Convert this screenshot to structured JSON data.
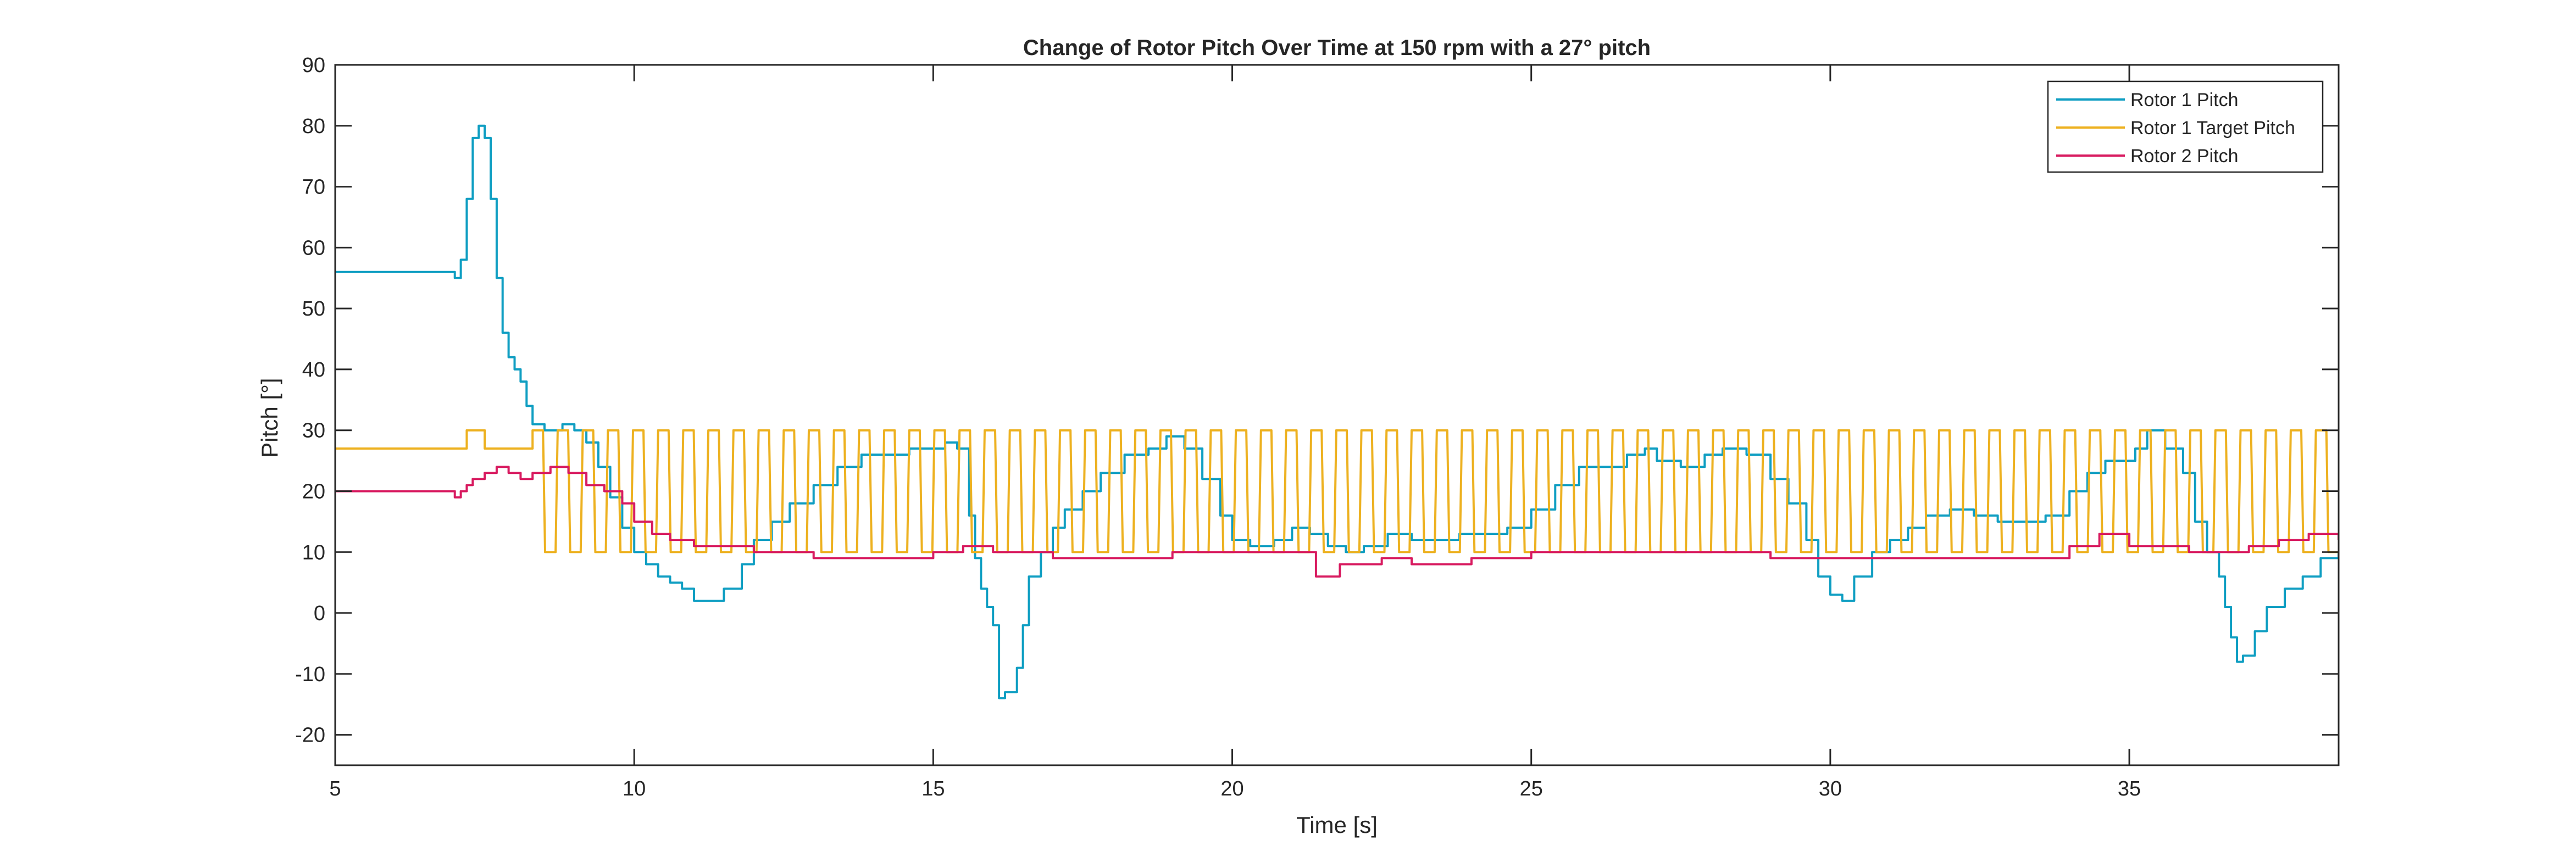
{
  "chart_data": {
    "type": "line",
    "title": "Change of Rotor Pitch Over Time at 150 rpm with a 27° pitch",
    "xlabel": "Time [s]",
    "ylabel": "Pitch [°]",
    "xlim": [
      5,
      38.5
    ],
    "ylim": [
      -25,
      90
    ],
    "xticks": [
      5,
      10,
      15,
      20,
      25,
      30,
      35
    ],
    "yticks": [
      -20,
      -10,
      0,
      10,
      20,
      30,
      40,
      50,
      60,
      70,
      80,
      90
    ],
    "grid": false,
    "legend_position": "top-right",
    "series": [
      {
        "name": "Rotor 1 Pitch",
        "color": "#0f9ec2",
        "step": true,
        "points": [
          [
            5,
            56
          ],
          [
            6.9,
            56
          ],
          [
            7.0,
            55
          ],
          [
            7.1,
            58
          ],
          [
            7.2,
            68
          ],
          [
            7.3,
            78
          ],
          [
            7.4,
            80
          ],
          [
            7.5,
            78
          ],
          [
            7.6,
            68
          ],
          [
            7.7,
            55
          ],
          [
            7.8,
            46
          ],
          [
            7.9,
            42
          ],
          [
            8.0,
            40
          ],
          [
            8.1,
            38
          ],
          [
            8.2,
            34
          ],
          [
            8.3,
            31
          ],
          [
            8.5,
            30
          ],
          [
            8.8,
            31
          ],
          [
            9.0,
            30
          ],
          [
            9.2,
            28
          ],
          [
            9.4,
            24
          ],
          [
            9.6,
            19
          ],
          [
            9.8,
            14
          ],
          [
            10.0,
            10
          ],
          [
            10.2,
            8
          ],
          [
            10.4,
            6
          ],
          [
            10.6,
            5
          ],
          [
            10.8,
            4
          ],
          [
            11.0,
            2
          ],
          [
            11.3,
            2
          ],
          [
            11.5,
            4
          ],
          [
            11.8,
            8
          ],
          [
            12.0,
            12
          ],
          [
            12.3,
            15
          ],
          [
            12.6,
            18
          ],
          [
            13.0,
            21
          ],
          [
            13.4,
            24
          ],
          [
            13.8,
            26
          ],
          [
            14.2,
            26
          ],
          [
            14.6,
            27
          ],
          [
            15.0,
            27
          ],
          [
            15.2,
            28
          ],
          [
            15.4,
            27
          ],
          [
            15.6,
            16
          ],
          [
            15.7,
            9
          ],
          [
            15.8,
            4
          ],
          [
            15.9,
            1
          ],
          [
            16.0,
            -2
          ],
          [
            16.1,
            -14
          ],
          [
            16.2,
            -13
          ],
          [
            16.4,
            -9
          ],
          [
            16.5,
            -2
          ],
          [
            16.6,
            6
          ],
          [
            16.8,
            10
          ],
          [
            17.0,
            14
          ],
          [
            17.2,
            17
          ],
          [
            17.5,
            20
          ],
          [
            17.8,
            23
          ],
          [
            18.2,
            26
          ],
          [
            18.6,
            27
          ],
          [
            18.9,
            29
          ],
          [
            19.2,
            27
          ],
          [
            19.5,
            22
          ],
          [
            19.8,
            16
          ],
          [
            20.0,
            12
          ],
          [
            20.3,
            11
          ],
          [
            20.7,
            12
          ],
          [
            21.0,
            14
          ],
          [
            21.3,
            13
          ],
          [
            21.6,
            11
          ],
          [
            21.9,
            10
          ],
          [
            22.2,
            11
          ],
          [
            22.6,
            13
          ],
          [
            23.0,
            12
          ],
          [
            23.4,
            12
          ],
          [
            23.8,
            13
          ],
          [
            24.2,
            13
          ],
          [
            24.6,
            14
          ],
          [
            25.0,
            17
          ],
          [
            25.4,
            21
          ],
          [
            25.8,
            24
          ],
          [
            26.2,
            24
          ],
          [
            26.6,
            26
          ],
          [
            26.9,
            27
          ],
          [
            27.1,
            25
          ],
          [
            27.5,
            24
          ],
          [
            27.9,
            26
          ],
          [
            28.2,
            27
          ],
          [
            28.6,
            26
          ],
          [
            29.0,
            22
          ],
          [
            29.3,
            18
          ],
          [
            29.6,
            12
          ],
          [
            29.8,
            6
          ],
          [
            30.0,
            3
          ],
          [
            30.2,
            2
          ],
          [
            30.4,
            6
          ],
          [
            30.7,
            10
          ],
          [
            31.0,
            12
          ],
          [
            31.3,
            14
          ],
          [
            31.6,
            16
          ],
          [
            32.0,
            17
          ],
          [
            32.4,
            16
          ],
          [
            32.8,
            15
          ],
          [
            33.2,
            15
          ],
          [
            33.6,
            16
          ],
          [
            34.0,
            20
          ],
          [
            34.3,
            23
          ],
          [
            34.6,
            25
          ],
          [
            34.9,
            25
          ],
          [
            35.1,
            27
          ],
          [
            35.3,
            30
          ],
          [
            35.6,
            27
          ],
          [
            35.9,
            23
          ],
          [
            36.1,
            15
          ],
          [
            36.3,
            10
          ],
          [
            36.5,
            6
          ],
          [
            36.6,
            1
          ],
          [
            36.7,
            -4
          ],
          [
            36.8,
            -8
          ],
          [
            36.9,
            -7
          ],
          [
            37.1,
            -3
          ],
          [
            37.3,
            1
          ],
          [
            37.6,
            4
          ],
          [
            37.9,
            6
          ],
          [
            38.2,
            9
          ],
          [
            38.5,
            10
          ]
        ]
      },
      {
        "name": "Rotor 1 Target Pitch",
        "color": "#edb120",
        "square_wave": {
          "period": 0.42,
          "high": 30,
          "low": 10,
          "start": 8.3
        },
        "points": [
          [
            5,
            27
          ],
          [
            7.2,
            27
          ],
          [
            7.2,
            30
          ],
          [
            7.5,
            30
          ],
          [
            7.5,
            27
          ],
          [
            8.3,
            27
          ]
        ]
      },
      {
        "name": "Rotor 2 Pitch",
        "color": "#d81b60",
        "step": true,
        "points": [
          [
            5,
            20
          ],
          [
            6.9,
            20
          ],
          [
            7.0,
            19
          ],
          [
            7.1,
            20
          ],
          [
            7.2,
            21
          ],
          [
            7.3,
            22
          ],
          [
            7.5,
            23
          ],
          [
            7.7,
            24
          ],
          [
            7.9,
            23
          ],
          [
            8.1,
            22
          ],
          [
            8.3,
            23
          ],
          [
            8.6,
            24
          ],
          [
            8.9,
            23
          ],
          [
            9.2,
            21
          ],
          [
            9.5,
            20
          ],
          [
            9.8,
            18
          ],
          [
            10.0,
            15
          ],
          [
            10.3,
            13
          ],
          [
            10.6,
            12
          ],
          [
            11.0,
            11
          ],
          [
            11.5,
            11
          ],
          [
            12.0,
            10
          ],
          [
            12.6,
            10
          ],
          [
            13.0,
            9
          ],
          [
            14.0,
            9
          ],
          [
            15.0,
            10
          ],
          [
            15.5,
            11
          ],
          [
            16.0,
            10
          ],
          [
            17.0,
            9
          ],
          [
            18.0,
            9
          ],
          [
            19.0,
            10
          ],
          [
            20.0,
            10
          ],
          [
            21.0,
            10
          ],
          [
            21.4,
            6
          ],
          [
            21.8,
            8
          ],
          [
            22.5,
            9
          ],
          [
            23.0,
            8
          ],
          [
            24.0,
            9
          ],
          [
            25.0,
            10
          ],
          [
            26.0,
            10
          ],
          [
            27.0,
            10
          ],
          [
            28.0,
            10
          ],
          [
            29.0,
            9
          ],
          [
            30.0,
            9
          ],
          [
            31.0,
            9
          ],
          [
            32.0,
            9
          ],
          [
            33.0,
            9
          ],
          [
            34.0,
            11
          ],
          [
            34.5,
            13
          ],
          [
            35.0,
            11
          ],
          [
            36.0,
            10
          ],
          [
            37.0,
            11
          ],
          [
            37.5,
            12
          ],
          [
            38.0,
            13
          ],
          [
            38.5,
            12
          ]
        ]
      }
    ]
  }
}
